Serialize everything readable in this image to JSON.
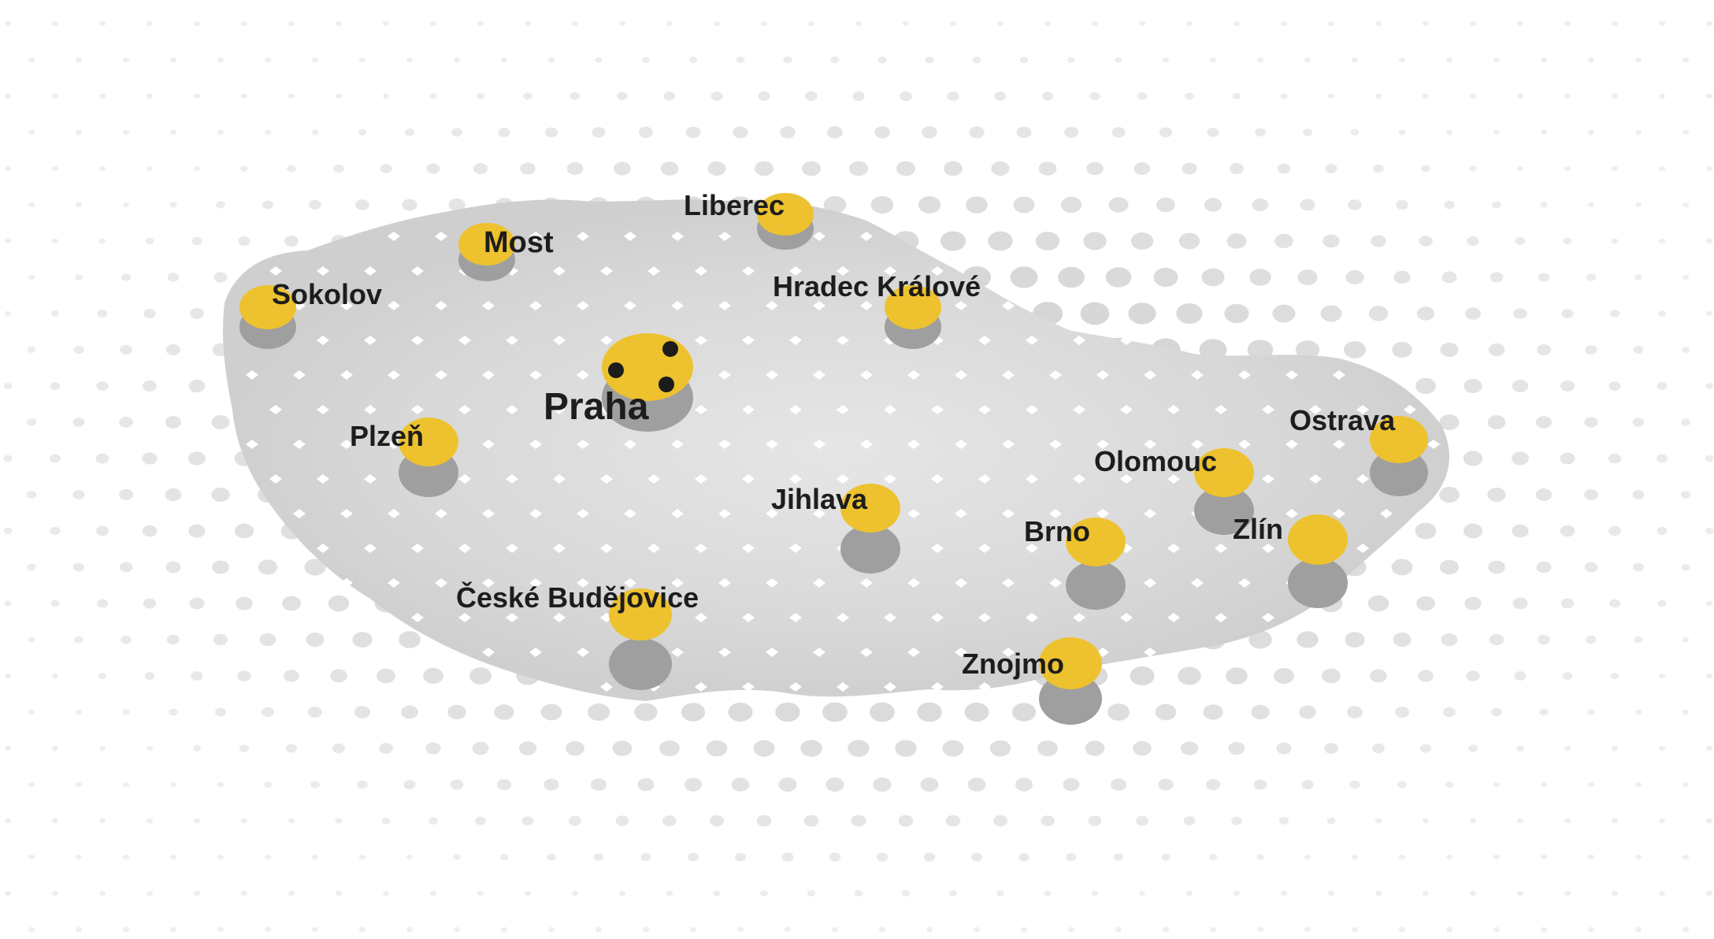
{
  "colors": {
    "background": "#ffffff",
    "dot_far": "#ebebeb",
    "dot_near": "#c6c6c6",
    "country_fill": "#dadada",
    "marker_yellow": "#eec22e",
    "marker_shadow": "#9f9f9f",
    "label": "#1d1d1d",
    "capital_dot": "#1c1c1c",
    "diamond": "#ffffff"
  },
  "cities": [
    {
      "id": "praha",
      "name": "Praha",
      "capital": true
    },
    {
      "id": "liberec",
      "name": "Liberec",
      "capital": false
    },
    {
      "id": "most",
      "name": "Most",
      "capital": false
    },
    {
      "id": "sokolov",
      "name": "Sokolov",
      "capital": false
    },
    {
      "id": "hradec-kralove",
      "name": "Hradec Králové",
      "capital": false
    },
    {
      "id": "plzen",
      "name": "Plzeň",
      "capital": false
    },
    {
      "id": "jihlava",
      "name": "Jihlava",
      "capital": false
    },
    {
      "id": "ceske-budejovice",
      "name": "České Budějovice",
      "capital": false
    },
    {
      "id": "olomouc",
      "name": "Olomouc",
      "capital": false
    },
    {
      "id": "ostrava",
      "name": "Ostrava",
      "capital": false
    },
    {
      "id": "brno",
      "name": "Brno",
      "capital": false
    },
    {
      "id": "zlin",
      "name": "Zlín",
      "capital": false
    },
    {
      "id": "znojmo",
      "name": "Znojmo",
      "capital": false
    }
  ]
}
